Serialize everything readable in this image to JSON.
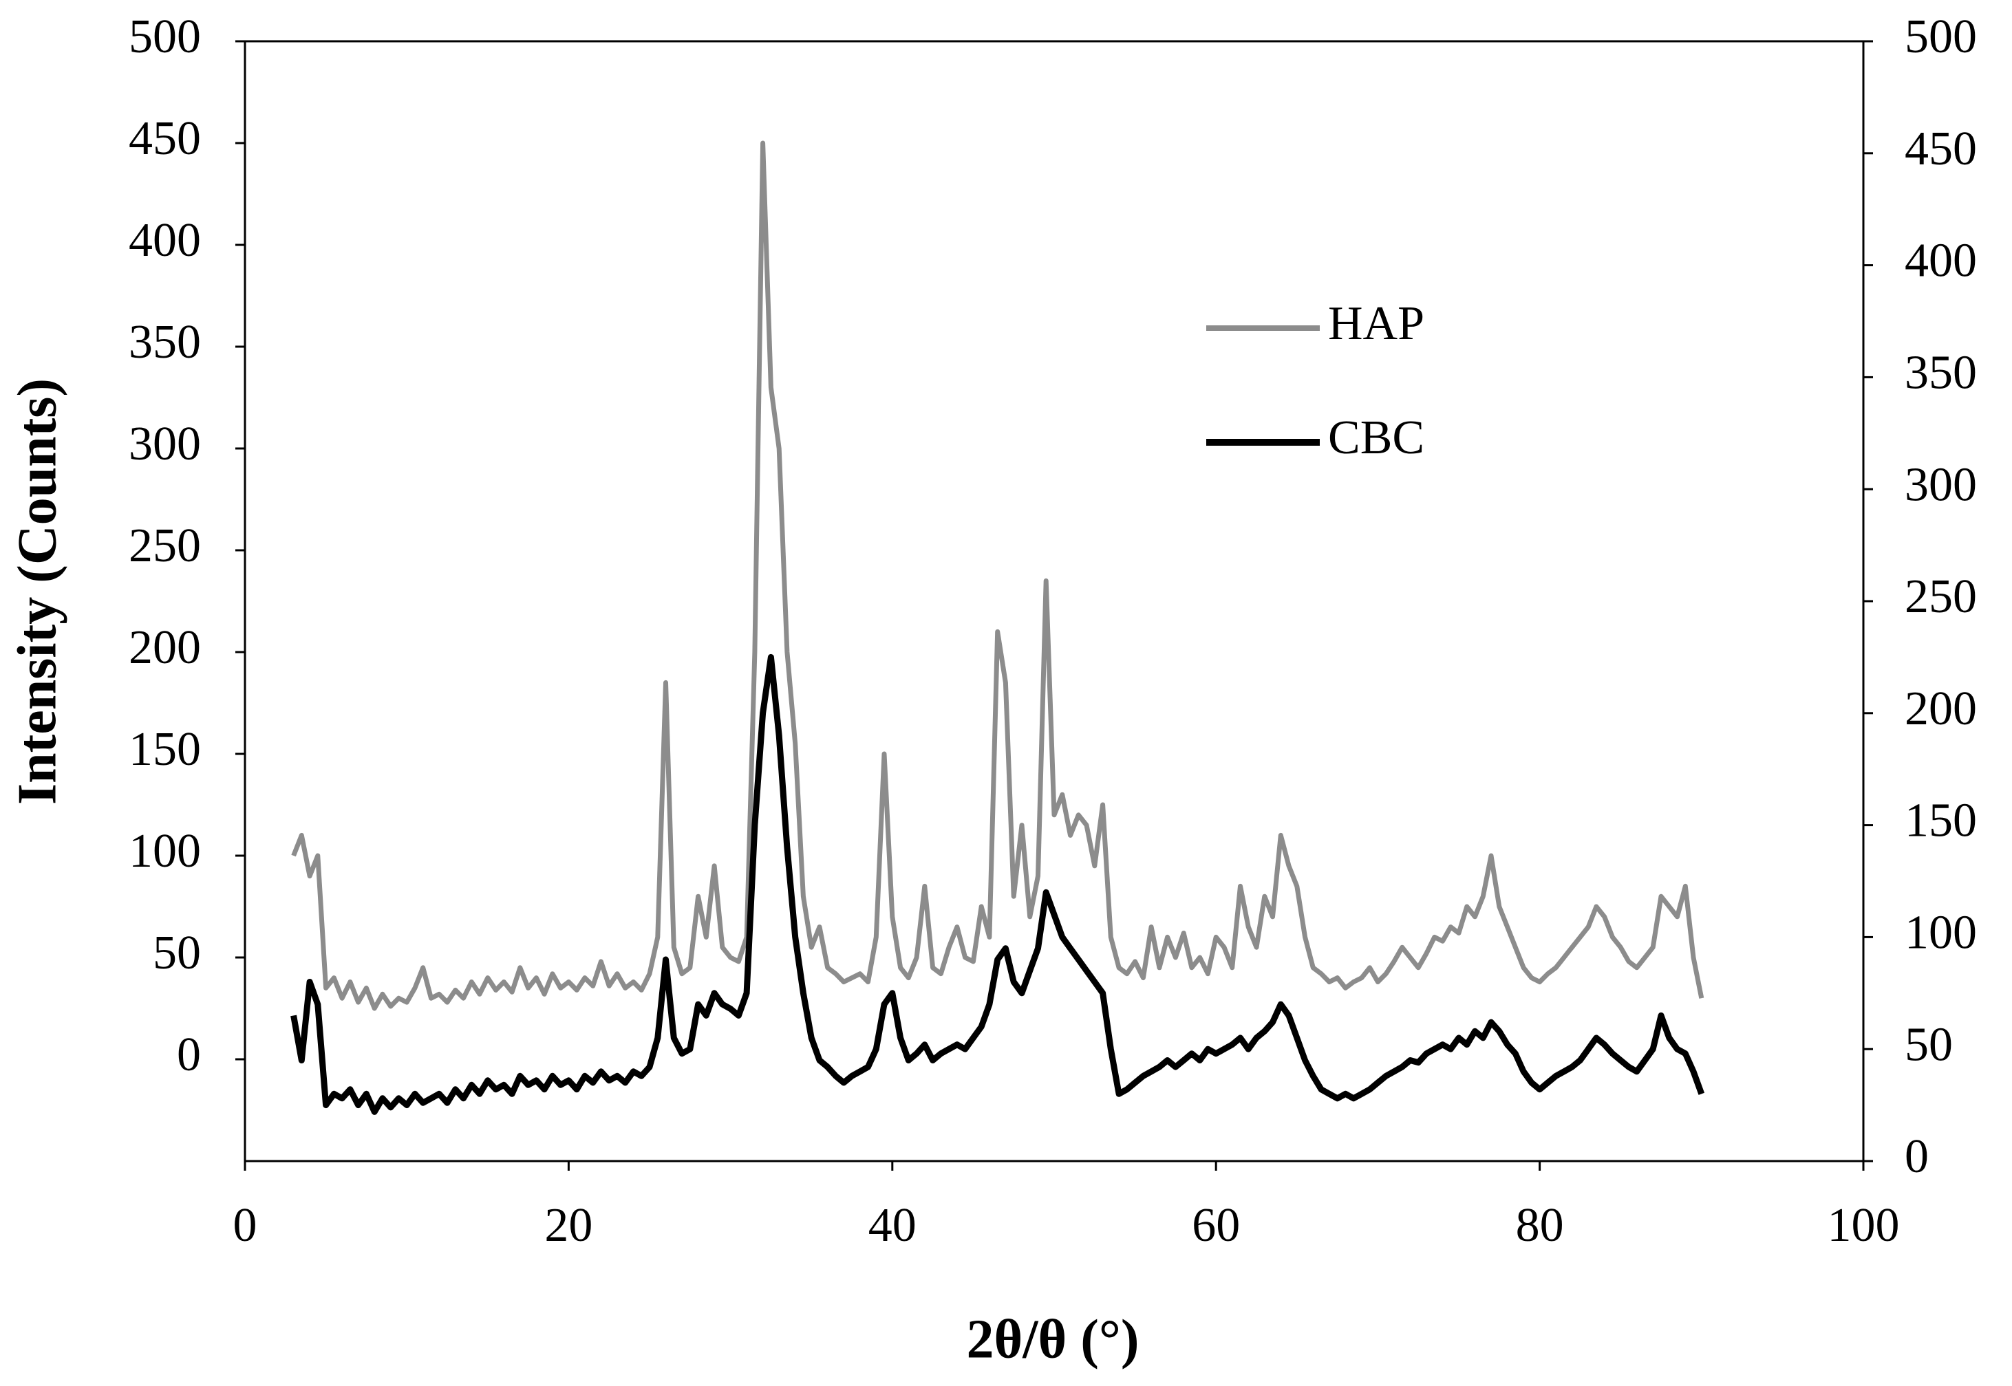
{
  "chart_data": {
    "type": "line",
    "xlabel": "2θ/θ (°)",
    "ylabel": "Intensity (Counts)",
    "xlim": [
      0,
      100
    ],
    "xticks": [
      0,
      20,
      40,
      60,
      80,
      100
    ],
    "ylim": [
      -50,
      500
    ],
    "yticks": [
      0,
      50,
      100,
      150,
      200,
      250,
      300,
      350,
      400,
      450,
      500
    ],
    "y2lim": [
      0,
      500
    ],
    "y2ticks": [
      0,
      50,
      100,
      150,
      200,
      250,
      300,
      350,
      400,
      450,
      500
    ],
    "grid": false,
    "legend": "upper right",
    "x": [
      3,
      3.5,
      4,
      4.5,
      5,
      5.5,
      6,
      6.5,
      7,
      7.5,
      8,
      8.5,
      9,
      9.5,
      10,
      10.5,
      11,
      11.5,
      12,
      12.5,
      13,
      13.5,
      14,
      14.5,
      15,
      15.5,
      16,
      16.5,
      17,
      17.5,
      18,
      18.5,
      19,
      19.5,
      20,
      20.5,
      21,
      21.5,
      22,
      22.5,
      23,
      23.5,
      24,
      24.5,
      25,
      25.5,
      26,
      26.5,
      27,
      27.5,
      28,
      28.5,
      29,
      29.5,
      30,
      30.5,
      31,
      31.5,
      32,
      32.5,
      33,
      33.5,
      34,
      34.5,
      35,
      35.5,
      36,
      36.5,
      37,
      37.5,
      38,
      38.5,
      39,
      39.5,
      40,
      40.5,
      41,
      41.5,
      42,
      42.5,
      43,
      43.5,
      44,
      44.5,
      45,
      45.5,
      46,
      46.5,
      47,
      47.5,
      48,
      48.5,
      49,
      49.5,
      50,
      50.5,
      51,
      51.5,
      52,
      52.5,
      53,
      53.5,
      54,
      54.5,
      55,
      55.5,
      56,
      56.5,
      57,
      57.5,
      58,
      58.5,
      59,
      59.5,
      60,
      60.5,
      61,
      61.5,
      62,
      62.5,
      63,
      63.5,
      64,
      64.5,
      65,
      65.5,
      66,
      66.5,
      67,
      67.5,
      68,
      68.5,
      69,
      69.5,
      70,
      70.5,
      71,
      71.5,
      72,
      72.5,
      73,
      73.5,
      74,
      74.5,
      75,
      75.5,
      76,
      76.5,
      77,
      77.5,
      78,
      78.5,
      79,
      79.5,
      80,
      80.5,
      81,
      81.5,
      82,
      82.5,
      83,
      83.5,
      84,
      84.5,
      85,
      85.5,
      86,
      86.5,
      87,
      87.5,
      88,
      88.5,
      89,
      89.5,
      90
    ],
    "series": [
      {
        "name": "HAP",
        "color": "#8c8c8c",
        "values": [
          100,
          110,
          90,
          100,
          35,
          40,
          30,
          38,
          28,
          35,
          25,
          32,
          26,
          30,
          28,
          35,
          45,
          30,
          32,
          28,
          34,
          30,
          38,
          32,
          40,
          34,
          38,
          33,
          45,
          35,
          40,
          32,
          42,
          35,
          38,
          34,
          40,
          36,
          48,
          36,
          42,
          35,
          38,
          34,
          42,
          60,
          185,
          55,
          42,
          45,
          80,
          60,
          95,
          55,
          50,
          48,
          60,
          200,
          450,
          330,
          300,
          200,
          155,
          80,
          55,
          65,
          45,
          42,
          38,
          40,
          42,
          38,
          60,
          150,
          70,
          45,
          40,
          50,
          85,
          45,
          42,
          55,
          65,
          50,
          48,
          75,
          60,
          210,
          185,
          80,
          115,
          70,
          90,
          235,
          120,
          130,
          110,
          120,
          115,
          95,
          125,
          60,
          45,
          42,
          48,
          40,
          65,
          45,
          60,
          50,
          62,
          45,
          50,
          42,
          60,
          55,
          45,
          85,
          65,
          55,
          80,
          70,
          110,
          95,
          85,
          60,
          45,
          42,
          38,
          40,
          35,
          38,
          40,
          45,
          38,
          42,
          48,
          55,
          50,
          45,
          52,
          60,
          58,
          65,
          62,
          75,
          70,
          80,
          100,
          75,
          65,
          55,
          45,
          40,
          38,
          42,
          45,
          50,
          55,
          60,
          65,
          75,
          70,
          60,
          55,
          48,
          45,
          50,
          55,
          80,
          75,
          70,
          85,
          50,
          30
        ]
      },
      {
        "name": "CBC",
        "color": "#000000",
        "axis": "y2",
        "values": [
          65,
          45,
          80,
          70,
          25,
          30,
          28,
          32,
          25,
          30,
          22,
          28,
          24,
          28,
          25,
          30,
          26,
          28,
          30,
          26,
          32,
          28,
          34,
          30,
          36,
          32,
          34,
          30,
          38,
          34,
          36,
          32,
          38,
          34,
          36,
          32,
          38,
          35,
          40,
          36,
          38,
          35,
          40,
          38,
          42,
          55,
          90,
          55,
          48,
          50,
          70,
          65,
          75,
          70,
          68,
          65,
          75,
          150,
          200,
          225,
          190,
          140,
          100,
          75,
          55,
          45,
          42,
          38,
          35,
          38,
          40,
          42,
          50,
          70,
          75,
          55,
          45,
          48,
          52,
          45,
          48,
          50,
          52,
          50,
          55,
          60,
          70,
          90,
          95,
          80,
          75,
          85,
          95,
          120,
          110,
          100,
          95,
          90,
          85,
          80,
          75,
          50,
          30,
          32,
          35,
          38,
          40,
          42,
          45,
          42,
          45,
          48,
          45,
          50,
          48,
          50,
          52,
          55,
          50,
          55,
          58,
          62,
          70,
          65,
          55,
          45,
          38,
          32,
          30,
          28,
          30,
          28,
          30,
          32,
          35,
          38,
          40,
          42,
          45,
          44,
          48,
          50,
          52,
          50,
          55,
          52,
          58,
          55,
          62,
          58,
          52,
          48,
          40,
          35,
          32,
          35,
          38,
          40,
          42,
          45,
          50,
          55,
          52,
          48,
          45,
          42,
          40,
          45,
          50,
          65,
          55,
          50,
          48,
          40,
          30
        ]
      }
    ]
  }
}
